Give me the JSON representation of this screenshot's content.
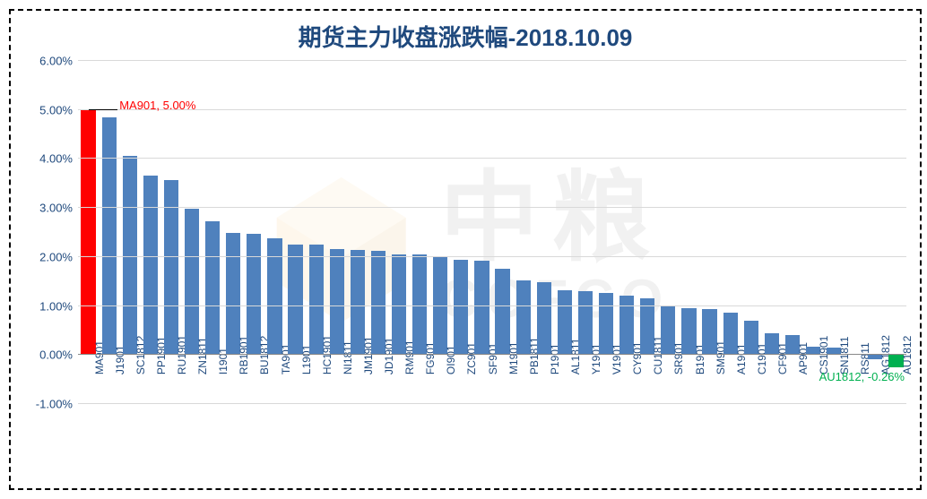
{
  "chart": {
    "title": "期货主力收盘涨跌幅-2018.10.09",
    "title_color": "#1f497d",
    "title_fontsize": 26,
    "type": "bar",
    "ylim": [
      -1.0,
      6.0
    ],
    "ytick_step": 1.0,
    "yticks": [
      "-1.00%",
      "0.00%",
      "1.00%",
      "2.00%",
      "3.00%",
      "4.00%",
      "5.00%",
      "6.00%"
    ],
    "ytick_values": [
      -1,
      0,
      1,
      2,
      3,
      4,
      5,
      6
    ],
    "grid_color": "#d9d9d9",
    "axis_font_color": "#1f497d",
    "axis_fontsize": 13,
    "xlabel_fontsize": 12,
    "background_color": "#ffffff",
    "bar_default_color": "#4f81bd",
    "highlight_max_color": "#ff0000",
    "highlight_min_color": "#00b050",
    "watermark": {
      "cn": "中粮",
      "en": "COFCO",
      "opacity": 0.08
    },
    "annotations": {
      "max": {
        "text": "MA901, 5.00%",
        "color": "#ff0000"
      },
      "min": {
        "text": "AU1812, -0.26%",
        "color": "#00b050"
      }
    },
    "categories": [
      "MA901",
      "J1901",
      "SC1812",
      "PP1901",
      "RU1901",
      "ZN1811",
      "I1901",
      "RB1901",
      "BU1812",
      "TA901",
      "L1901",
      "HC1901",
      "NI1811",
      "JM1901",
      "JD1901",
      "RM901",
      "FG901",
      "OI901",
      "ZC901",
      "SF901",
      "M1901",
      "PB1811",
      "P1901",
      "AL1811",
      "Y1901",
      "V1901",
      "CY901",
      "CU1811",
      "SR901",
      "B1901",
      "SM901",
      "A1901",
      "C1901",
      "CF901",
      "AP901",
      "CS1901",
      "SN1811",
      "RS811",
      "AG1812",
      "AU1812"
    ],
    "values": [
      5.0,
      4.83,
      4.05,
      3.65,
      3.56,
      2.97,
      2.71,
      2.48,
      2.45,
      2.36,
      2.24,
      2.23,
      2.14,
      2.13,
      2.1,
      2.04,
      2.03,
      1.98,
      1.93,
      1.9,
      1.75,
      1.5,
      1.46,
      1.31,
      1.28,
      1.24,
      1.19,
      1.13,
      1.0,
      0.94,
      0.92,
      0.84,
      0.68,
      0.43,
      0.38,
      0.15,
      0.13,
      0.0,
      -0.1,
      -0.26
    ],
    "colors": [
      "#ff0000",
      "#4f81bd",
      "#4f81bd",
      "#4f81bd",
      "#4f81bd",
      "#4f81bd",
      "#4f81bd",
      "#4f81bd",
      "#4f81bd",
      "#4f81bd",
      "#4f81bd",
      "#4f81bd",
      "#4f81bd",
      "#4f81bd",
      "#4f81bd",
      "#4f81bd",
      "#4f81bd",
      "#4f81bd",
      "#4f81bd",
      "#4f81bd",
      "#4f81bd",
      "#4f81bd",
      "#4f81bd",
      "#4f81bd",
      "#4f81bd",
      "#4f81bd",
      "#4f81bd",
      "#4f81bd",
      "#4f81bd",
      "#4f81bd",
      "#4f81bd",
      "#4f81bd",
      "#4f81bd",
      "#4f81bd",
      "#4f81bd",
      "#4f81bd",
      "#4f81bd",
      "#4f81bd",
      "#4f81bd",
      "#00b050"
    ]
  }
}
